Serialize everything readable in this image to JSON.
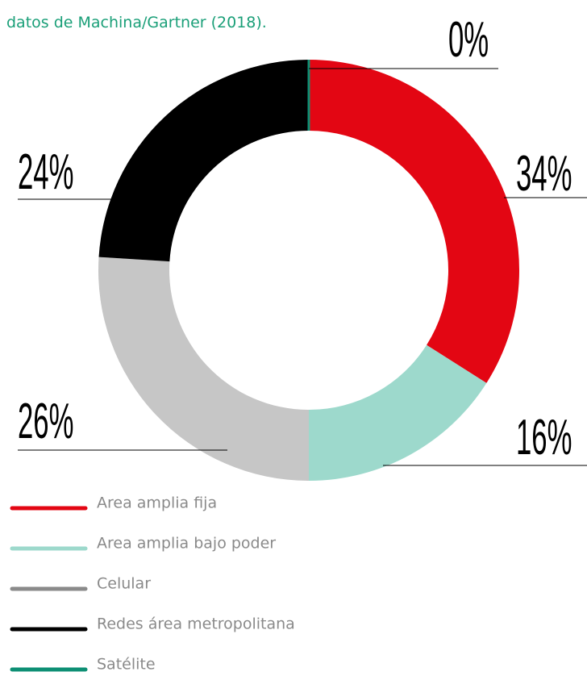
{
  "chart_data": {
    "type": "donut",
    "subtitle": "datos de Machina/Gartner (2018).",
    "categories": [
      "Area amplia fija",
      "Area amplia bajo poder",
      "Celular",
      "Redes área metropolitana",
      "Satélite"
    ],
    "values": [
      34,
      16,
      26,
      24,
      0
    ],
    "value_labels": [
      "34%",
      "16%",
      "26%",
      "24%",
      "0%"
    ],
    "colors": [
      "#e30613",
      "#9dd9cc",
      "#c6c6c6",
      "#000000",
      "#0e8f74"
    ],
    "legend_colors": [
      "#e30613",
      "#9dd9cc",
      "#8a8a8a",
      "#000000",
      "#0e8f74"
    ]
  }
}
